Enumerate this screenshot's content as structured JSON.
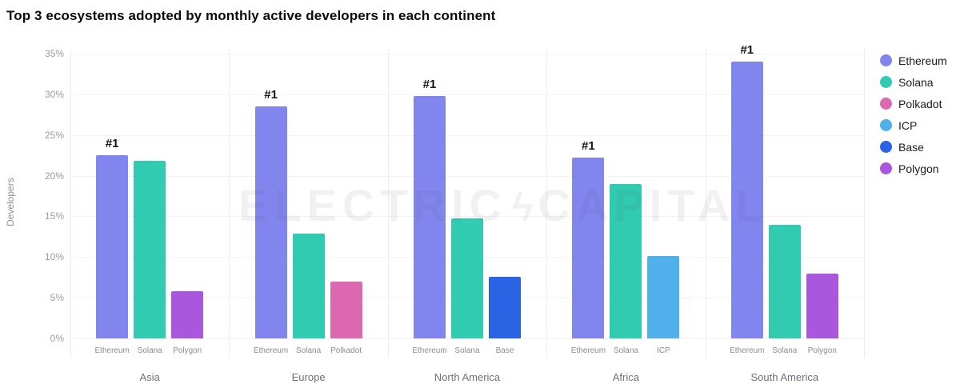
{
  "title": "Top 3 ecosystems adopted by monthly active developers in each continent",
  "y_axis": {
    "label": "Developers",
    "ticks": [
      "0%",
      "5%",
      "10%",
      "15%",
      "20%",
      "25%",
      "30%",
      "35%"
    ],
    "tick_step": 5
  },
  "rank_badge": "#1",
  "watermark": {
    "left_text": "ELECTRIC",
    "bolt_icon": "ϟ",
    "right_text": "CAPITAL"
  },
  "legend": [
    {
      "name": "Ethereum",
      "color": "#8185ee"
    },
    {
      "name": "Solana",
      "color": "#30cbb0"
    },
    {
      "name": "Polkadot",
      "color": "#dc68b2"
    },
    {
      "name": "ICP",
      "color": "#4fb0ec"
    },
    {
      "name": "Base",
      "color": "#2a64e4"
    },
    {
      "name": "Polygon",
      "color": "#a958dd"
    }
  ],
  "chart_data": {
    "type": "bar",
    "title": "Top 3 ecosystems adopted by monthly active developers in each continent",
    "xlabel": "",
    "ylabel": "Developers",
    "ylim": [
      0,
      35
    ],
    "grid": true,
    "legend_position": "right",
    "colors": {
      "Ethereum": "#8185ee",
      "Solana": "#30cbb0",
      "Polkadot": "#dc68b2",
      "ICP": "#4fb0ec",
      "Base": "#2a64e4",
      "Polygon": "#a958dd"
    },
    "groups": [
      {
        "continent": "Asia",
        "bars": [
          {
            "ecosystem": "Ethereum",
            "value": 22.5,
            "rank": "#1"
          },
          {
            "ecosystem": "Solana",
            "value": 21.8
          },
          {
            "ecosystem": "Polygon",
            "value": 5.8
          }
        ]
      },
      {
        "continent": "Europe",
        "bars": [
          {
            "ecosystem": "Ethereum",
            "value": 28.5,
            "rank": "#1"
          },
          {
            "ecosystem": "Solana",
            "value": 12.9
          },
          {
            "ecosystem": "Polkadot",
            "value": 7.0
          }
        ]
      },
      {
        "continent": "North America",
        "bars": [
          {
            "ecosystem": "Ethereum",
            "value": 29.8,
            "rank": "#1"
          },
          {
            "ecosystem": "Solana",
            "value": 14.7
          },
          {
            "ecosystem": "Base",
            "value": 7.6
          }
        ]
      },
      {
        "continent": "Africa",
        "bars": [
          {
            "ecosystem": "Ethereum",
            "value": 22.2,
            "rank": "#1"
          },
          {
            "ecosystem": "Solana",
            "value": 19.0
          },
          {
            "ecosystem": "ICP",
            "value": 10.1
          }
        ]
      },
      {
        "continent": "South America",
        "bars": [
          {
            "ecosystem": "Ethereum",
            "value": 34.0,
            "rank": "#1"
          },
          {
            "ecosystem": "Solana",
            "value": 14.0
          },
          {
            "ecosystem": "Polygon",
            "value": 8.0
          }
        ]
      }
    ]
  }
}
